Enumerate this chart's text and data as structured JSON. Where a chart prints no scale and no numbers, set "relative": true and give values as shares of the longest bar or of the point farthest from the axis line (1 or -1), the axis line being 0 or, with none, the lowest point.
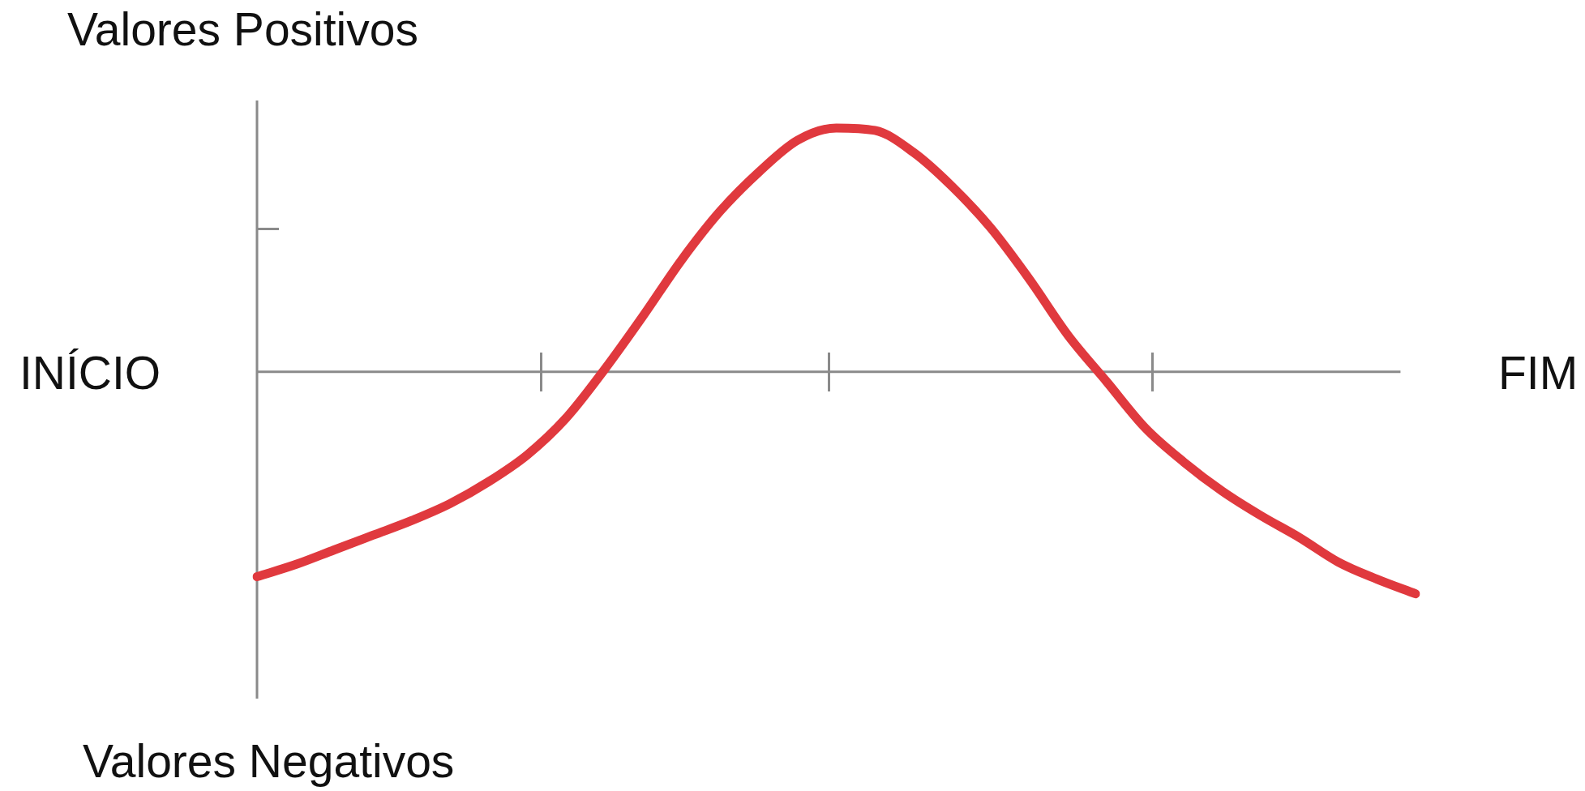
{
  "chart_data": {
    "type": "line",
    "relative": true,
    "categories": [
      null,
      null,
      null,
      null,
      null,
      null,
      null,
      null,
      null,
      null,
      null,
      null,
      null,
      null,
      null,
      null,
      null,
      null,
      null,
      null,
      null,
      null,
      null,
      null,
      null,
      null,
      null,
      null,
      null,
      null,
      null
    ],
    "values": [
      -0.84,
      -0.79,
      -0.73,
      -0.67,
      -0.61,
      -0.54,
      -0.45,
      -0.34,
      -0.19,
      0.01,
      0.23,
      0.46,
      0.66,
      0.82,
      0.95,
      1,
      0.99,
      0.9,
      0.76,
      0.59,
      0.38,
      0.15,
      -0.04,
      -0.23,
      -0.37,
      -0.49,
      -0.59,
      -0.68,
      -0.78,
      -0.85,
      -0.91
    ],
    "color": "#e0393e",
    "marker": "none",
    "line_style": "solid",
    "annotations": [
      "Valores Positivos",
      "Valores Negativos",
      "INÍCIO",
      "FIM"
    ]
  }
}
